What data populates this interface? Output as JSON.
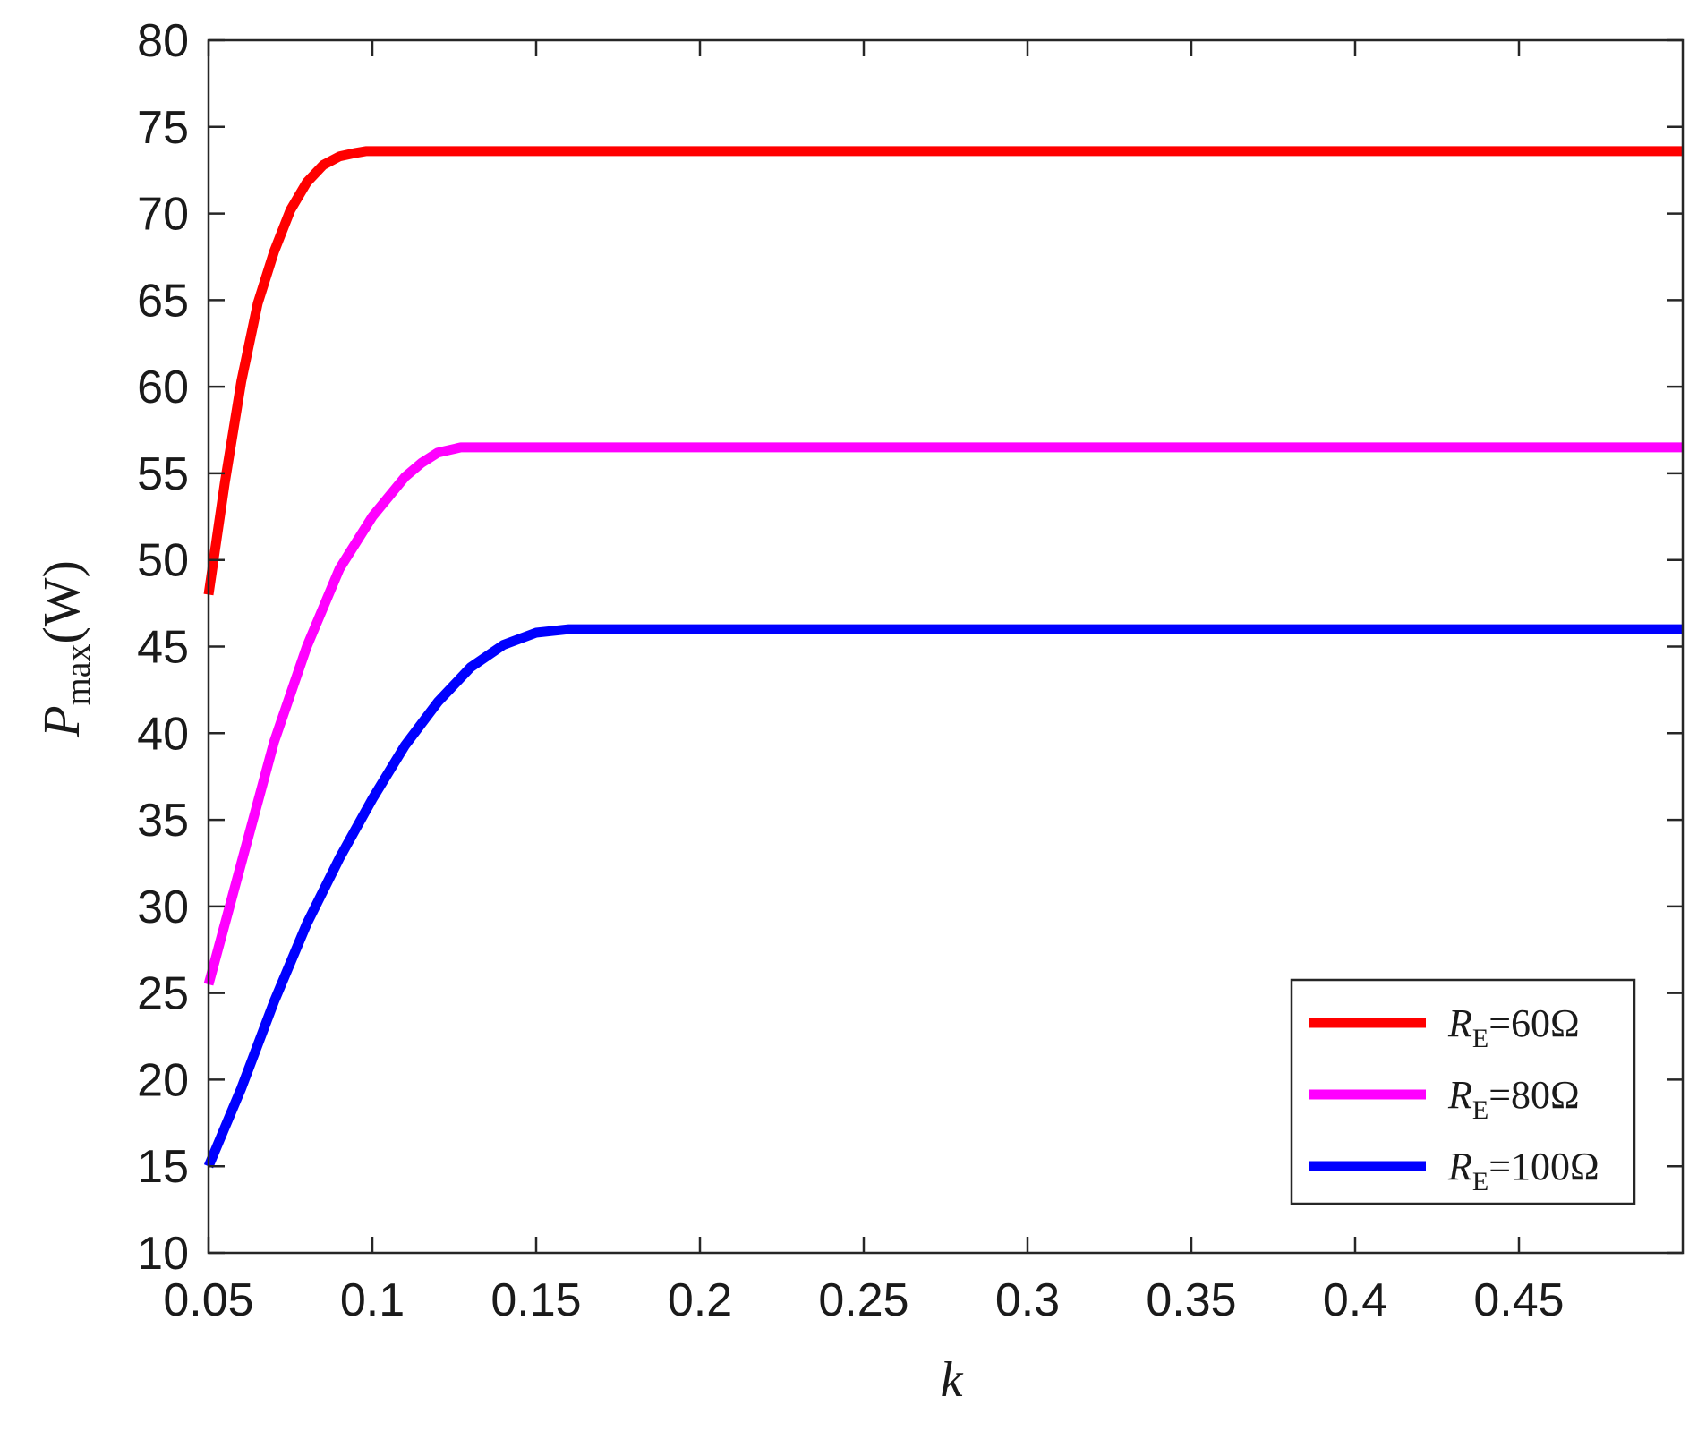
{
  "chart_data": {
    "type": "line",
    "title": "",
    "xlabel": {
      "var": "k"
    },
    "ylabel": {
      "var": "P",
      "sub": "max",
      "unit": "(W)"
    },
    "xlim": [
      0.05,
      0.5
    ],
    "ylim": [
      10,
      80
    ],
    "xticks": [
      0.05,
      0.1,
      0.15,
      0.2,
      0.25,
      0.3,
      0.35,
      0.4,
      0.45
    ],
    "xtick_labels": [
      "0.05",
      "0.1",
      "0.15",
      "0.2",
      "0.25",
      "0.3",
      "0.35",
      "0.4",
      "0.45"
    ],
    "yticks": [
      10,
      15,
      20,
      25,
      30,
      35,
      40,
      45,
      50,
      55,
      60,
      65,
      70,
      75,
      80
    ],
    "ytick_labels": [
      "10",
      "15",
      "20",
      "25",
      "30",
      "35",
      "40",
      "45",
      "50",
      "55",
      "60",
      "65",
      "70",
      "75",
      "80"
    ],
    "grid": false,
    "box": true,
    "legend": {
      "position": "bottom-right"
    },
    "series": [
      {
        "name": {
          "var": "R",
          "sub": "E",
          "text": "=60Ω"
        },
        "color": "#ff0000",
        "x": [
          0.05,
          0.055,
          0.06,
          0.065,
          0.07,
          0.075,
          0.08,
          0.085,
          0.09,
          0.095,
          0.098,
          0.5
        ],
        "y": [
          48,
          54.5,
          60.3,
          64.8,
          67.8,
          70.2,
          71.8,
          72.8,
          73.3,
          73.5,
          73.6,
          73.6
        ]
      },
      {
        "name": {
          "var": "R",
          "sub": "E",
          "text": "=80Ω"
        },
        "color": "#ff00ff",
        "x": [
          0.05,
          0.06,
          0.07,
          0.08,
          0.09,
          0.1,
          0.11,
          0.115,
          0.12,
          0.127,
          0.5
        ],
        "y": [
          25.5,
          32.5,
          39.5,
          45,
          49.5,
          52.5,
          54.8,
          55.6,
          56.2,
          56.5,
          56.5
        ]
      },
      {
        "name": {
          "var": "R",
          "sub": "E",
          "text": "=100Ω"
        },
        "color": "#0000ff",
        "x": [
          0.05,
          0.06,
          0.07,
          0.08,
          0.09,
          0.1,
          0.11,
          0.12,
          0.13,
          0.14,
          0.15,
          0.16,
          0.5
        ],
        "y": [
          15,
          19.5,
          24.5,
          29,
          32.8,
          36.2,
          39.3,
          41.8,
          43.8,
          45.1,
          45.8,
          46,
          46
        ]
      }
    ]
  }
}
